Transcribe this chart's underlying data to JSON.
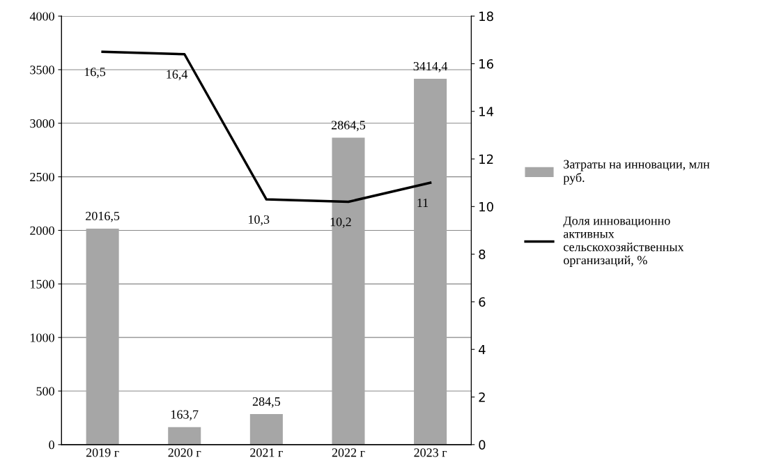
{
  "chart_data": {
    "type": "bar",
    "categories": [
      "2019 г",
      "2020 г",
      "2021 г",
      "2022 г",
      "2023 г"
    ],
    "series": [
      {
        "name": "Затраты на инновации, млн руб.",
        "color": "#a6a6a6",
        "values": [
          2016.5,
          163.7,
          284.5,
          2864.5,
          3414.4
        ],
        "value_labels": [
          "2016,5",
          "163,7",
          "284,5",
          "2864,5",
          "3414,4"
        ]
      },
      {
        "name": "Доля инновационно активных сельскохозяйственных организаций, %",
        "type": "line",
        "axis": "y2",
        "color": "#000000",
        "values": [
          16.5,
          16.4,
          10.3,
          10.2,
          11
        ],
        "value_labels": [
          "16,5",
          "16,4",
          "10,3",
          "10,2",
          "11"
        ]
      }
    ],
    "ylim": [
      0,
      4000
    ],
    "yticks": [
      0,
      500,
      1000,
      1500,
      2000,
      2500,
      3000,
      3500,
      4000
    ],
    "y2lim": [
      0,
      18
    ],
    "y2ticks": [
      0,
      2,
      4,
      6,
      8,
      10,
      12,
      14,
      16,
      18
    ],
    "grid": "y",
    "legend": "right",
    "marker": "none",
    "line_style": "solid"
  }
}
